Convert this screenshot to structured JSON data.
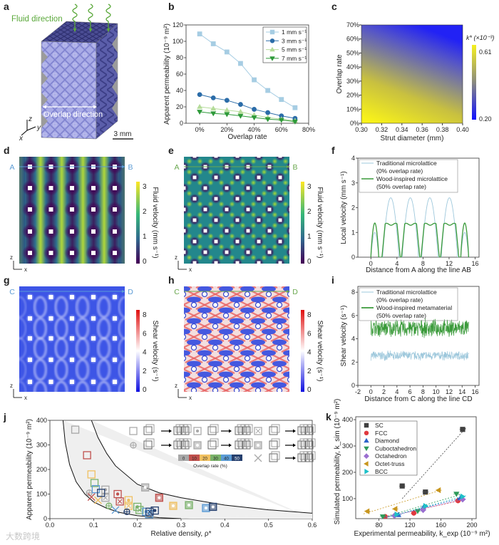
{
  "panel_labels": {
    "a": "a",
    "b": "b",
    "c": "c",
    "d": "d",
    "e": "e",
    "f": "f",
    "g": "g",
    "h": "h",
    "i": "i",
    "j": "j",
    "k": "k"
  },
  "panel_a": {
    "fluid_direction": "Fluid direction",
    "overlap_direction": "Overlap direction",
    "scale_bar": "3 mm",
    "axes": {
      "x": "x",
      "y": "y",
      "z": "z"
    },
    "colors": {
      "front": "#a9abe6",
      "side": "#5b5eaa",
      "top": "#4b4d94",
      "fluid": "#5aa83a"
    }
  },
  "maps": {
    "d": {
      "start": "A",
      "end": "B",
      "line_color": "#5b9bd5",
      "colorbar_label": "Fluid velocity (mm s⁻¹)",
      "ticks": [
        "0",
        "1",
        "2",
        "3"
      ],
      "axis_z": "z",
      "axis_x": "x"
    },
    "e": {
      "start": "A",
      "end": "B",
      "line_color": "#6aa84f",
      "colorbar_label": "Fluid velocity (mm s⁻¹)",
      "ticks": [
        "0",
        "1",
        "2",
        "3"
      ],
      "axis_z": "z",
      "axis_x": "x"
    },
    "g": {
      "start": "C",
      "end": "D",
      "line_color": "#5b9bd5",
      "colorbar_label": "Shear velocity (s⁻¹)",
      "ticks": [
        "0",
        "2",
        "4",
        "6",
        "8"
      ],
      "axis_z": "z",
      "axis_x": "x"
    },
    "h": {
      "start": "C",
      "end": "D",
      "line_color": "#6aa84f",
      "colorbar_label": "Shear velocity (s⁻¹)",
      "ticks": [
        "0",
        "2",
        "4",
        "6",
        "8"
      ],
      "axis_z": "z",
      "axis_x": "x"
    }
  },
  "watermark": "大数跨境",
  "chart_data": [
    {
      "id": "b",
      "type": "line",
      "xlabel": "Overlap rate",
      "ylabel": "Apparent permeability (10⁻⁹ m²)",
      "xlim": [
        -10,
        80
      ],
      "ylim": [
        0,
        120
      ],
      "x": [
        0,
        10,
        20,
        30,
        40,
        50,
        60,
        70
      ],
      "xticks": [
        0,
        20,
        40,
        60,
        80
      ],
      "xtick_labels": [
        "0%",
        "20%",
        "40%",
        "60%",
        "80%"
      ],
      "yticks": [
        0,
        20,
        40,
        60,
        80,
        100,
        120
      ],
      "ytick_labels": [
        "0",
        "20",
        "40",
        "60",
        "80",
        "100",
        "120"
      ],
      "legend": "top-right",
      "series": [
        {
          "name": "1 mm s⁻¹",
          "color": "#a6cde3",
          "marker": "square",
          "values": [
            109,
            97,
            87,
            73,
            53,
            40,
            29,
            19
          ]
        },
        {
          "name": "3 mm s⁻¹",
          "color": "#2b6ca8",
          "marker": "circle",
          "values": [
            35,
            31,
            28,
            23,
            17,
            13,
            9,
            6
          ]
        },
        {
          "name": "5 mm s⁻¹",
          "color": "#b5dc9a",
          "marker": "triangle-up",
          "values": [
            20,
            18,
            16,
            14,
            10,
            7,
            5,
            3
          ]
        },
        {
          "name": "7 mm s⁻¹",
          "color": "#2e9a3a",
          "marker": "triangle-down",
          "values": [
            14,
            12,
            11,
            9,
            7,
            5,
            4,
            2
          ]
        }
      ]
    },
    {
      "id": "c",
      "type": "heatmap",
      "xlabel": "Strut diameter (mm)",
      "ylabel": "Overlap rate",
      "xlim": [
        0.3,
        0.4
      ],
      "ylim": [
        0,
        70
      ],
      "xtick_labels": [
        "0.30",
        "0.32",
        "0.34",
        "0.36",
        "0.38",
        "0.40"
      ],
      "ytick_labels": [
        "0%",
        "10%",
        "20%",
        "30%",
        "40%",
        "50%",
        "60%",
        "70%"
      ],
      "colorbar": {
        "label": "k* (×10⁻³)",
        "max": "0.61",
        "min": "0.20",
        "max_color": "#f5f01e",
        "min_color": "#1010ff"
      }
    },
    {
      "id": "f",
      "type": "line",
      "xlabel": "Distance from A along the line AB",
      "ylabel": "Local velocity (mm s⁻¹)",
      "xlim": [
        -2,
        16.6
      ],
      "ylim": [
        0,
        4
      ],
      "xticks": [
        0,
        4,
        8,
        12,
        16
      ],
      "xtick_labels": [
        "0",
        "4",
        "8",
        "12",
        "16"
      ],
      "yticks": [
        0,
        1,
        2,
        3,
        4
      ],
      "ytick_labels": [
        "0",
        "1",
        "2",
        "3",
        "4"
      ],
      "legend": "top-left",
      "series": [
        {
          "name": "Traditional microlattice",
          "note": "(0% overlap rate)",
          "color": "#9ec8dc",
          "shape": "peak",
          "humps": [
            [
              0,
              1.2,
              1.0
            ],
            [
              1.8,
              4.3,
              2.4
            ],
            [
              4.8,
              7.3,
              2.4
            ],
            [
              7.8,
              10.3,
              2.4
            ],
            [
              10.8,
              13.3,
              2.4
            ],
            [
              13.8,
              15,
              1.0
            ]
          ]
        },
        {
          "name": "Wood-inspired microlattice",
          "note": "(50% overlap rate)",
          "color": "#3a9a3a",
          "shape": "plateau",
          "humps": [
            [
              0,
              1.2,
              1.38
            ],
            [
              1.7,
              4.5,
              1.33
            ],
            [
              4.7,
              7.5,
              1.33
            ],
            [
              7.7,
              10.5,
              1.33
            ],
            [
              10.7,
              13.5,
              1.33
            ],
            [
              13.8,
              15,
              1.38
            ]
          ]
        }
      ]
    },
    {
      "id": "i",
      "type": "line",
      "xlabel": "Distance from C along the line CD",
      "ylabel": "Shear velocity (s⁻¹)",
      "xlim": [
        -2,
        16.6
      ],
      "ylim": [
        0,
        8.5
      ],
      "xticks": [
        -2,
        0,
        2,
        4,
        6,
        8,
        10,
        12,
        14,
        16
      ],
      "xtick_labels": [
        "-2",
        "0",
        "2",
        "4",
        "6",
        "8",
        "10",
        "12",
        "14",
        "16"
      ],
      "yticks": [
        0,
        2,
        4,
        6,
        8
      ],
      "ytick_labels": [
        "0",
        "2",
        "4",
        "6",
        "8"
      ],
      "legend": "top-left",
      "series": [
        {
          "name": "Traditional microlattice",
          "note": "(0% overlap rate)",
          "color": "#9ec8dc",
          "x_range": [
            0,
            15
          ],
          "mean": 2.55,
          "amplitude": 0.45
        },
        {
          "name": "Wood-inspired metamaterial",
          "note": "(50% overlap rate)",
          "color": "#3a9a3a",
          "x_range": [
            0,
            15
          ],
          "mean": 4.9,
          "amplitude": 0.85
        }
      ]
    },
    {
      "id": "j",
      "type": "scatter",
      "xlabel": "Relative density, ρ*",
      "ylabel": "Apparent permeability (10⁻⁹ m²)",
      "xlim": [
        0,
        0.6
      ],
      "ylim": [
        0,
        400
      ],
      "xticks": [
        0,
        0.1,
        0.2,
        0.3,
        0.4,
        0.5,
        0.6
      ],
      "xtick_labels": [
        "0.0",
        "0.1",
        "0.2",
        "0.3",
        "0.4",
        "0.5",
        "0.6"
      ],
      "yticks": [
        0,
        100,
        200,
        300,
        400
      ],
      "ytick_labels": [
        "0",
        "100",
        "200",
        "300",
        "400"
      ],
      "overlap_scale": {
        "label": "Overlap rate (%)",
        "levels": [
          "0",
          "10",
          "20",
          "30",
          "40",
          "50"
        ],
        "colors": [
          "#a8a8a8",
          "#c0504d",
          "#f0c060",
          "#7ab26a",
          "#5b9bd5",
          "#26406e"
        ]
      },
      "upper_bound": [
        [
          0.095,
          400
        ],
        [
          0.11,
          330
        ],
        [
          0.13,
          265
        ],
        [
          0.15,
          215
        ],
        [
          0.2,
          140
        ],
        [
          0.25,
          105
        ],
        [
          0.3,
          85
        ],
        [
          0.4,
          55
        ],
        [
          0.5,
          36
        ],
        [
          0.6,
          22
        ]
      ],
      "lower_bound": [
        [
          0.03,
          400
        ],
        [
          0.035,
          310
        ],
        [
          0.045,
          220
        ],
        [
          0.06,
          150
        ],
        [
          0.08,
          100
        ],
        [
          0.1,
          68
        ],
        [
          0.13,
          42
        ],
        [
          0.16,
          25
        ],
        [
          0.2,
          12
        ],
        [
          0.25,
          4
        ],
        [
          0.3,
          0
        ]
      ],
      "points": [
        {
          "x": 0.058,
          "y": 362,
          "overlap": 0,
          "lattice": "sc"
        },
        {
          "x": 0.127,
          "y": 118,
          "overlap": 0,
          "lattice": "fcc"
        },
        {
          "x": 0.127,
          "y": 85,
          "overlap": 0,
          "lattice": "octet"
        },
        {
          "x": 0.218,
          "y": 127,
          "overlap": 0,
          "lattice": "bcc"
        },
        {
          "x": 0.09,
          "y": 105,
          "overlap": 0,
          "lattice": "diamond"
        },
        {
          "x": 0.085,
          "y": 258,
          "overlap": 10,
          "lattice": "sc"
        },
        {
          "x": 0.155,
          "y": 100,
          "overlap": 10,
          "lattice": "fcc"
        },
        {
          "x": 0.16,
          "y": 70,
          "overlap": 10,
          "lattice": "octet"
        },
        {
          "x": 0.25,
          "y": 85,
          "overlap": 10,
          "lattice": "bcc"
        },
        {
          "x": 0.095,
          "y": 88,
          "overlap": 10,
          "lattice": "cross"
        },
        {
          "x": 0.095,
          "y": 180,
          "overlap": 20,
          "lattice": "sc"
        },
        {
          "x": 0.18,
          "y": 75,
          "overlap": 20,
          "lattice": "fcc"
        },
        {
          "x": 0.18,
          "y": 52,
          "overlap": 20,
          "lattice": "octet"
        },
        {
          "x": 0.282,
          "y": 52,
          "overlap": 20,
          "lattice": "bcc"
        },
        {
          "x": 0.11,
          "y": 75,
          "overlap": 20,
          "lattice": "cross"
        },
        {
          "x": 0.102,
          "y": 145,
          "overlap": 30,
          "lattice": "sc"
        },
        {
          "x": 0.2,
          "y": 48,
          "overlap": 30,
          "lattice": "fcc"
        },
        {
          "x": 0.205,
          "y": 35,
          "overlap": 30,
          "lattice": "octet"
        },
        {
          "x": 0.318,
          "y": 55,
          "overlap": 30,
          "lattice": "bcc"
        },
        {
          "x": 0.135,
          "y": 52,
          "overlap": 30,
          "lattice": "diamond"
        },
        {
          "x": 0.105,
          "y": 120,
          "overlap": 40,
          "lattice": "sc"
        },
        {
          "x": 0.22,
          "y": 28,
          "overlap": 40,
          "lattice": "fcc"
        },
        {
          "x": 0.227,
          "y": 18,
          "overlap": 40,
          "lattice": "octet"
        },
        {
          "x": 0.357,
          "y": 43,
          "overlap": 40,
          "lattice": "bcc"
        },
        {
          "x": 0.15,
          "y": 35,
          "overlap": 40,
          "lattice": "cross"
        },
        {
          "x": 0.117,
          "y": 105,
          "overlap": 50,
          "lattice": "sc"
        },
        {
          "x": 0.24,
          "y": 33,
          "overlap": 50,
          "lattice": "fcc"
        },
        {
          "x": 0.228,
          "y": 28,
          "overlap": 50,
          "lattice": "octet"
        },
        {
          "x": 0.373,
          "y": 48,
          "overlap": 50,
          "lattice": "bcc"
        },
        {
          "x": 0.176,
          "y": 28,
          "overlap": 50,
          "lattice": "diamond"
        }
      ]
    },
    {
      "id": "k",
      "type": "scatter",
      "xlabel": "Experimental permeability, k_exp (10⁻⁹ m²)",
      "ylabel": "Simulated permeability, k_sim (10⁻⁹ m²)",
      "xlim": [
        50,
        205.5
      ],
      "ylim": [
        24,
        411
      ],
      "xticks": [
        80,
        120,
        160,
        200
      ],
      "xtick_labels": [
        "80",
        "120",
        "160",
        "200"
      ],
      "yticks": [
        100,
        200,
        300,
        400
      ],
      "ytick_labels": [
        "100",
        "200",
        "300",
        "400"
      ],
      "legend": "top-left",
      "series": [
        {
          "name": "SC",
          "color": "#404040",
          "marker": "square",
          "points": [
            [
              110,
              148
            ],
            [
              140,
              125
            ],
            [
              188,
              363
            ]
          ],
          "fit": [
            [
              110,
              100
            ],
            [
              192,
              368
            ]
          ]
        },
        {
          "name": "FCC",
          "color": "#e0393e",
          "marker": "circle",
          "points": [
            [
              88,
              32
            ],
            [
              125,
              45
            ],
            [
              182,
              92
            ]
          ],
          "fit": [
            [
              85,
              28
            ],
            [
              190,
              96
            ]
          ]
        },
        {
          "name": "Diamond",
          "color": "#2a62c9",
          "marker": "triangle-up",
          "points": [
            [
              105,
              38
            ],
            [
              137,
              65
            ],
            [
              185,
              102
            ]
          ],
          "fit": [
            [
              88,
              28
            ],
            [
              190,
              104
            ]
          ]
        },
        {
          "name": "Cuboctahedron",
          "color": "#2e9a5a",
          "marker": "triangle-down",
          "points": [
            [
              85,
              32
            ],
            [
              130,
              53
            ],
            [
              180,
              118
            ]
          ],
          "fit": [
            [
              84,
              28
            ],
            [
              186,
              116
            ]
          ]
        },
        {
          "name": "Octahedron",
          "color": "#9a6fd0",
          "marker": "diamond",
          "points": [
            [
              100,
              35
            ],
            [
              137,
              57
            ],
            [
              188,
              97
            ]
          ],
          "fit": [
            [
              90,
              30
            ],
            [
              192,
              99
            ]
          ]
        },
        {
          "name": "Octet-truss",
          "color": "#c8961e",
          "marker": "triangle-left",
          "points": [
            [
              65,
              52
            ],
            [
              101,
              61
            ],
            [
              157,
              132
            ]
          ],
          "fit": [
            [
              60,
              42
            ],
            [
              160,
              132
            ]
          ]
        },
        {
          "name": "BCC",
          "color": "#1ec0c8",
          "marker": "triangle-right",
          "points": [
            [
              103,
              40
            ],
            [
              140,
              72
            ],
            [
              188,
              108
            ]
          ],
          "fit": [
            [
              92,
              30
            ],
            [
              192,
              112
            ]
          ]
        }
      ]
    }
  ]
}
